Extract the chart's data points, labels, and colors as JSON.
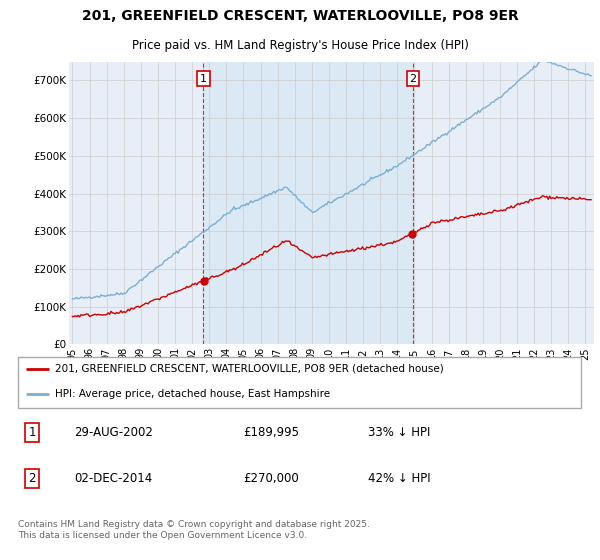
{
  "title": "201, GREENFIELD CRESCENT, WATERLOOVILLE, PO8 9ER",
  "subtitle": "Price paid vs. HM Land Registry's House Price Index (HPI)",
  "ylabel_ticks": [
    "£0",
    "£100K",
    "£200K",
    "£300K",
    "£400K",
    "£500K",
    "£600K",
    "£700K"
  ],
  "ytick_vals": [
    0,
    100000,
    200000,
    300000,
    400000,
    500000,
    600000,
    700000
  ],
  "ylim": [
    0,
    750000
  ],
  "xlim_start": 1994.8,
  "xlim_end": 2025.5,
  "marker1_x": 2002.66,
  "marker2_x": 2014.92,
  "marker1": {
    "label": "1",
    "date": "29-AUG-2002",
    "price": "£189,995",
    "note": "33% ↓ HPI"
  },
  "marker2": {
    "label": "2",
    "date": "02-DEC-2014",
    "price": "£270,000",
    "note": "42% ↓ HPI"
  },
  "sale1_y": 189995,
  "sale2_y": 270000,
  "legend_line1": "201, GREENFIELD CRESCENT, WATERLOOVILLE, PO8 9ER (detached house)",
  "legend_line2": "HPI: Average price, detached house, East Hampshire",
  "footnote": "Contains HM Land Registry data © Crown copyright and database right 2025.\nThis data is licensed under the Open Government Licence v3.0.",
  "line_color_red": "#cc0000",
  "line_color_blue": "#7aafd4",
  "fill_color": "#d8e8f5",
  "bg_color": "#e8eef8",
  "plot_bg": "#ffffff",
  "grid_color": "#cccccc"
}
